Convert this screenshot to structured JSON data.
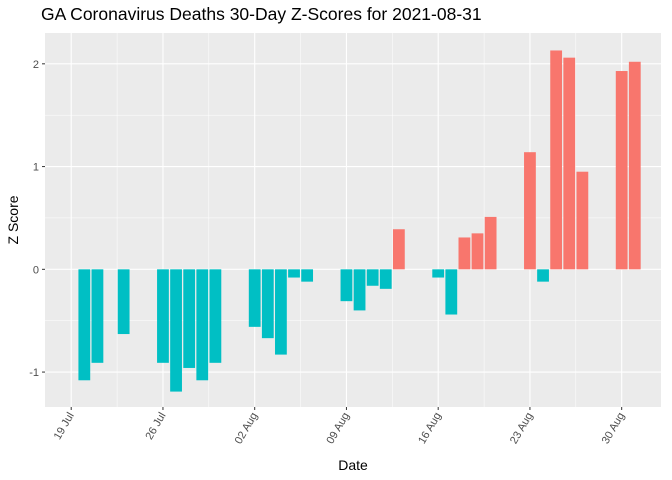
{
  "chart_data": {
    "type": "bar",
    "title": "GA Coronavirus Deaths 30-Day Z-Scores for 2021-08-31",
    "xlabel": "Date",
    "ylabel": "Z Score",
    "xlim": [
      "2021-07-17",
      "2021-09-02"
    ],
    "ylim": [
      -1.34,
      2.3
    ],
    "x_ticks": [
      {
        "date": "2021-07-19",
        "label": "19 Jul"
      },
      {
        "date": "2021-07-26",
        "label": "26 Jul"
      },
      {
        "date": "2021-08-02",
        "label": "02 Aug"
      },
      {
        "date": "2021-08-09",
        "label": "09 Aug"
      },
      {
        "date": "2021-08-16",
        "label": "16 Aug"
      },
      {
        "date": "2021-08-23",
        "label": "23 Aug"
      },
      {
        "date": "2021-08-30",
        "label": "30 Aug"
      }
    ],
    "y_ticks": [
      -1,
      0,
      1,
      2
    ],
    "colors": {
      "positive": "#F8766D",
      "negative": "#00BFC4",
      "panel": "#EBEBEB",
      "grid": "#FFFFFF"
    },
    "x": [
      "2021-07-20",
      "2021-07-21",
      "2021-07-23",
      "2021-07-26",
      "2021-07-27",
      "2021-07-28",
      "2021-07-29",
      "2021-07-30",
      "2021-08-02",
      "2021-08-03",
      "2021-08-04",
      "2021-08-05",
      "2021-08-06",
      "2021-08-09",
      "2021-08-10",
      "2021-08-11",
      "2021-08-12",
      "2021-08-13",
      "2021-08-16",
      "2021-08-17",
      "2021-08-18",
      "2021-08-19",
      "2021-08-20",
      "2021-08-23",
      "2021-08-24",
      "2021-08-25",
      "2021-08-26",
      "2021-08-27",
      "2021-08-30",
      "2021-08-31"
    ],
    "values": [
      -1.08,
      -0.91,
      -0.63,
      -0.91,
      -1.19,
      -0.96,
      -1.08,
      -0.91,
      -0.56,
      -0.67,
      -0.83,
      -0.08,
      -0.12,
      -0.31,
      -0.4,
      -0.16,
      -0.19,
      0.39,
      -0.08,
      -0.44,
      0.31,
      0.35,
      0.51,
      1.14,
      -0.12,
      2.13,
      2.06,
      0.95,
      1.93,
      2.02
    ]
  }
}
